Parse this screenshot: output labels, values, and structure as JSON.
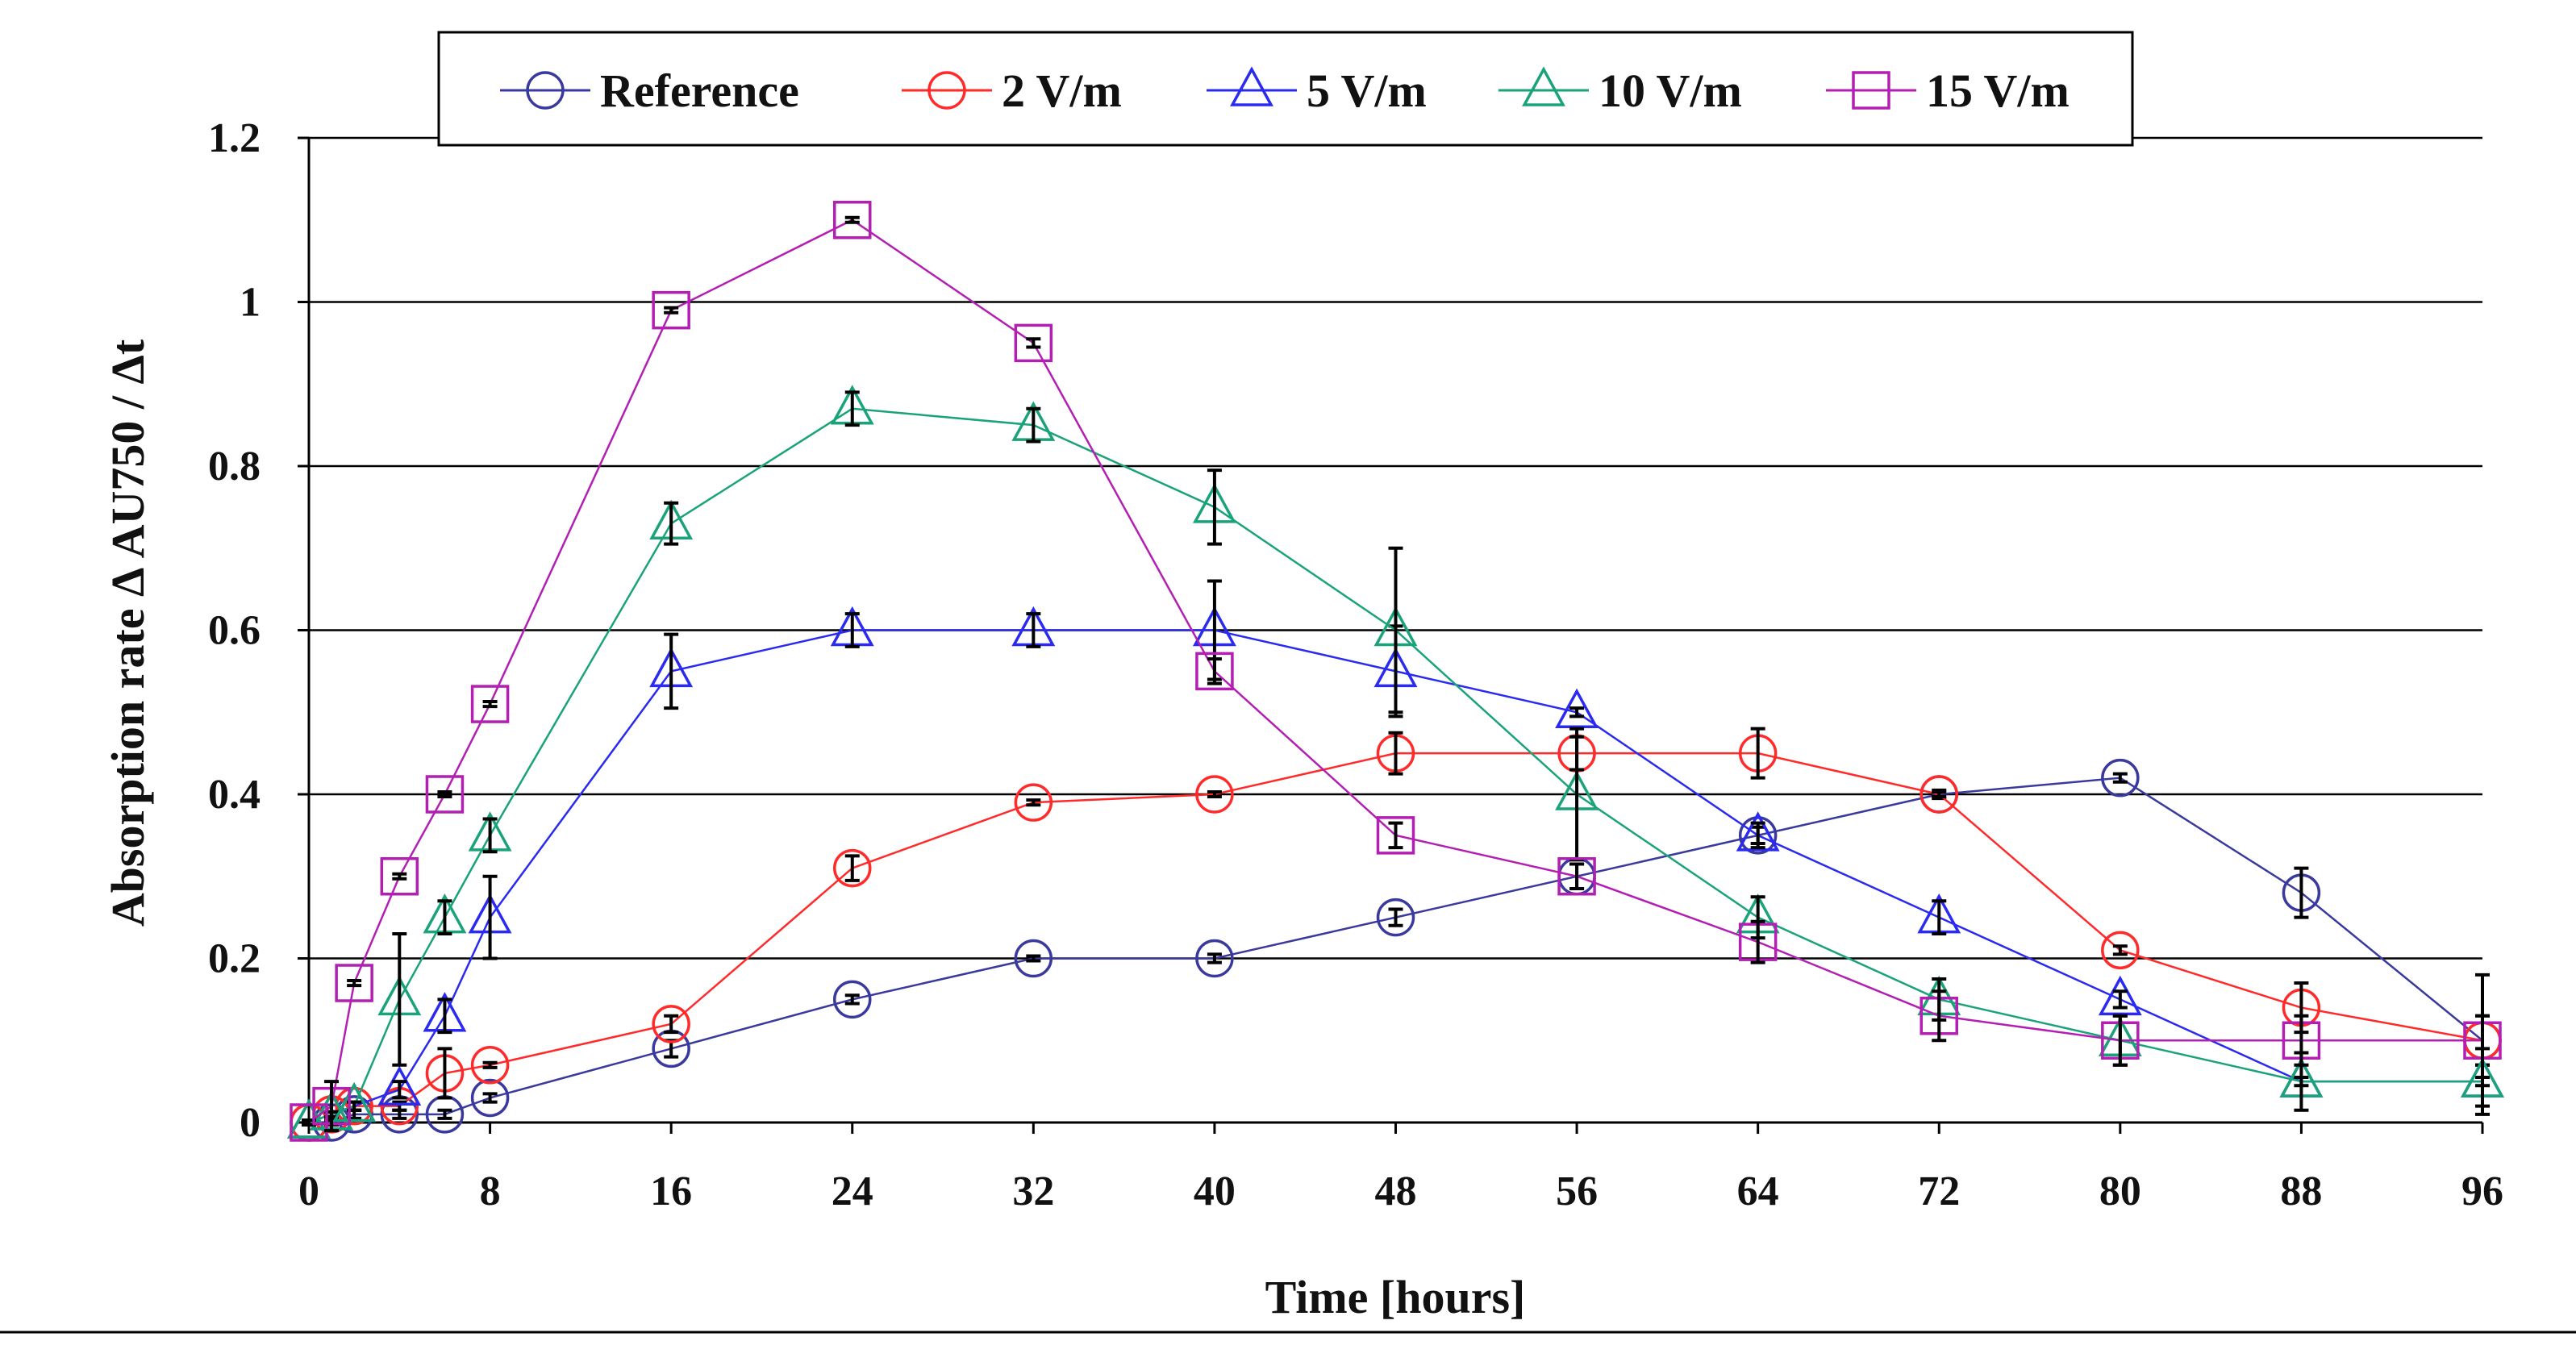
{
  "chart_data": {
    "type": "line",
    "xlabel": "Time [hours]",
    "ylabel": "Absorption rate Δ AU750 / Δt",
    "xlim": [
      0,
      96
    ],
    "ylim": [
      0,
      1.2
    ],
    "x_ticks": [
      0,
      8,
      16,
      24,
      32,
      40,
      48,
      56,
      64,
      72,
      80,
      88,
      96
    ],
    "x_tick_labels": [
      "0",
      "8",
      "16",
      "24",
      "32",
      "40",
      "48",
      "56",
      "64",
      "72",
      "80",
      "88",
      "96"
    ],
    "y_ticks": [
      0,
      0.2,
      0.4,
      0.6,
      0.8,
      1.0,
      1.2
    ],
    "y_tick_labels": [
      "0",
      "0.2",
      "0.4",
      "0.6",
      "0.8",
      "1",
      "1.2"
    ],
    "grid": "horizontal",
    "legend_position": "top",
    "series": [
      {
        "name": "Reference",
        "color": "#3a3a9e",
        "marker": "circle",
        "x": [
          0,
          1,
          2,
          4,
          6,
          8,
          16,
          24,
          32,
          40,
          48,
          56,
          64,
          72,
          80,
          88,
          96
        ],
        "y": [
          0,
          0,
          0.01,
          0.01,
          0.01,
          0.03,
          0.09,
          0.15,
          0.2,
          0.2,
          0.25,
          0.3,
          0.35,
          0.4,
          0.42,
          0.28,
          0.1
        ],
        "err": [
          0.003,
          0.003,
          0.005,
          0.005,
          0.005,
          0.005,
          0.01,
          0.005,
          0.003,
          0.005,
          0.01,
          0.015,
          0.01,
          0.005,
          0.005,
          0.03,
          0.03
        ]
      },
      {
        "name": "2 V/m",
        "color": "#ff2a2a",
        "marker": "circle",
        "x": [
          0,
          1,
          2,
          4,
          6,
          8,
          16,
          24,
          32,
          40,
          48,
          56,
          64,
          72,
          80,
          88,
          96
        ],
        "y": [
          0,
          0.01,
          0.02,
          0.02,
          0.06,
          0.07,
          0.12,
          0.31,
          0.39,
          0.4,
          0.45,
          0.45,
          0.45,
          0.4,
          0.21,
          0.14,
          0.1
        ],
        "err": [
          0.003,
          0.003,
          0.005,
          0.005,
          0.03,
          0.003,
          0.01,
          0.015,
          0.003,
          0.003,
          0.025,
          0.02,
          0.03,
          0.003,
          0.005,
          0.03,
          0.03
        ]
      },
      {
        "name": "5 V/m",
        "color": "#2a2af0",
        "marker": "triangle",
        "x": [
          0,
          1,
          2,
          4,
          6,
          8,
          16,
          24,
          32,
          40,
          48,
          56,
          64,
          72,
          80,
          88,
          96
        ],
        "y": [
          0,
          0.01,
          0.02,
          0.04,
          0.13,
          0.25,
          0.55,
          0.6,
          0.6,
          0.6,
          0.55,
          0.5,
          0.35,
          0.25,
          0.15,
          0.05,
          0.05
        ],
        "err": [
          0.003,
          0.003,
          0.005,
          0.01,
          0.02,
          0.05,
          0.045,
          0.02,
          0.02,
          0.06,
          0.055,
          0.005,
          0.015,
          0.02,
          0.01,
          0.005,
          0.005
        ]
      },
      {
        "name": "10 V/m",
        "color": "#1aa37a",
        "marker": "triangle",
        "x": [
          0,
          1,
          2,
          4,
          6,
          8,
          16,
          24,
          32,
          40,
          48,
          56,
          64,
          72,
          80,
          88,
          96
        ],
        "y": [
          0,
          0.01,
          0.02,
          0.15,
          0.25,
          0.35,
          0.73,
          0.87,
          0.85,
          0.75,
          0.6,
          0.4,
          0.25,
          0.15,
          0.1,
          0.05,
          0.05
        ],
        "err": [
          0.003,
          0.003,
          0.005,
          0.08,
          0.02,
          0.02,
          0.025,
          0.02,
          0.02,
          0.045,
          0.1,
          0.08,
          0.025,
          0.025,
          0.03,
          0.035,
          0.04
        ]
      },
      {
        "name": "15 V/m",
        "color": "#b31fb3",
        "marker": "square",
        "x": [
          0,
          1,
          2,
          4,
          6,
          8,
          16,
          24,
          32,
          40,
          48,
          56,
          64,
          72,
          80,
          88,
          96
        ],
        "y": [
          0,
          0.02,
          0.17,
          0.3,
          0.4,
          0.51,
          0.99,
          1.1,
          0.95,
          0.55,
          0.35,
          0.3,
          0.22,
          0.13,
          0.1,
          0.1,
          0.1
        ],
        "err": [
          0.003,
          0.03,
          0.003,
          0.003,
          0.003,
          0.003,
          0.003,
          0.003,
          0.005,
          0.015,
          0.015,
          0.015,
          0.025,
          0.03,
          0.03,
          0.03,
          0.08
        ]
      }
    ]
  }
}
